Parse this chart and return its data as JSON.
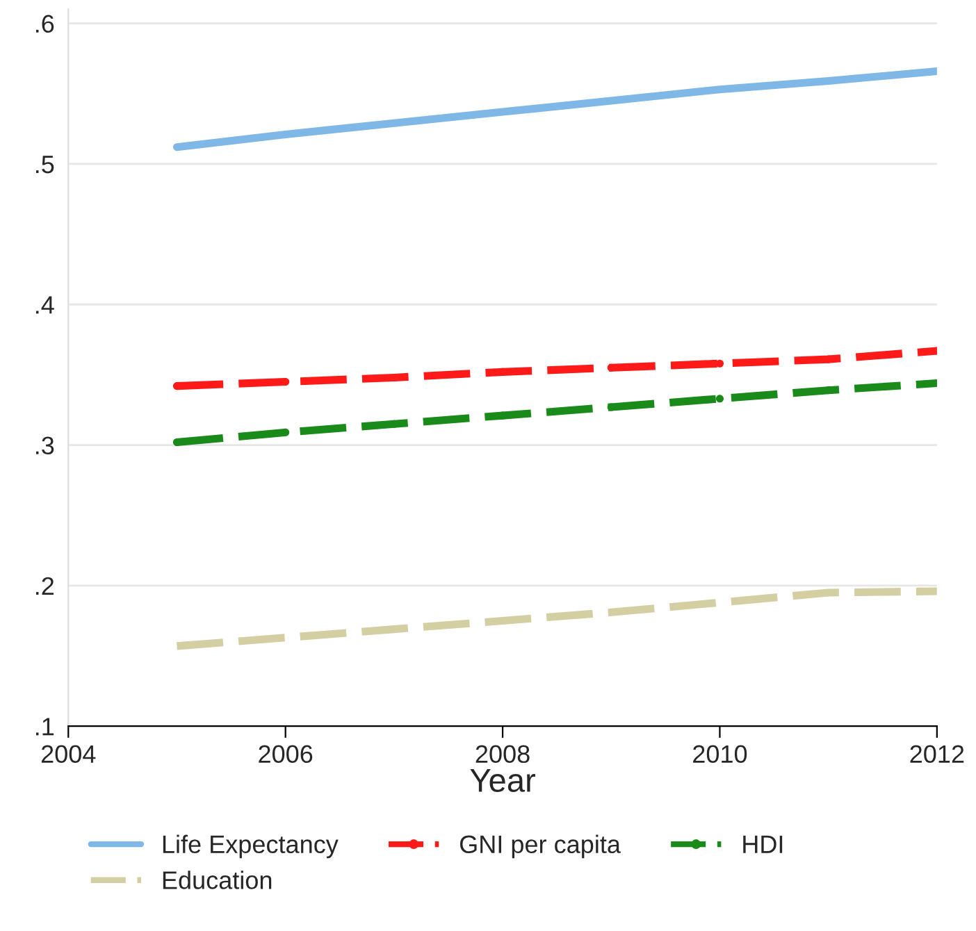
{
  "chart_data": {
    "type": "line",
    "xlabel": "Year",
    "x": [
      2005,
      2006,
      2007,
      2008,
      2009,
      2010,
      2011,
      2012
    ],
    "series": [
      {
        "name": "Life Expectancy",
        "color": "#7fb8e6",
        "line_style": "solid",
        "marker": "none",
        "values": [
          0.512,
          0.521,
          0.529,
          0.537,
          0.545,
          0.553,
          0.559,
          0.566
        ]
      },
      {
        "name": "Education",
        "color": "#d4cfa2",
        "line_style": "dashed",
        "marker": "none",
        "values": [
          0.157,
          0.163,
          0.169,
          0.175,
          0.181,
          0.188,
          0.195,
          0.196
        ]
      },
      {
        "name": "GNI per capita",
        "color": "#ff1a1a",
        "line_style": "dashed",
        "marker": "circle",
        "values": [
          0.342,
          0.345,
          0.348,
          0.352,
          0.355,
          0.358,
          0.361,
          0.367
        ]
      },
      {
        "name": "HDI",
        "color": "#1a8a1a",
        "line_style": "dashed",
        "marker": "circle",
        "values": [
          0.302,
          0.309,
          0.315,
          0.321,
          0.327,
          0.333,
          0.339,
          0.344
        ]
      }
    ],
    "xlim": [
      2004,
      2012
    ],
    "xticks": [
      2004,
      2006,
      2008,
      2010,
      2012
    ],
    "ylim": [
      0.1,
      0.61
    ],
    "yticks": [
      {
        "value": 0.1,
        "label": ".1"
      },
      {
        "value": 0.2,
        "label": ".2"
      },
      {
        "value": 0.3,
        "label": ".3"
      },
      {
        "value": 0.4,
        "label": ".4"
      },
      {
        "value": 0.5,
        "label": ".5"
      },
      {
        "value": 0.6,
        "label": ".6"
      }
    ],
    "grid": "y",
    "legend": "bottom"
  }
}
